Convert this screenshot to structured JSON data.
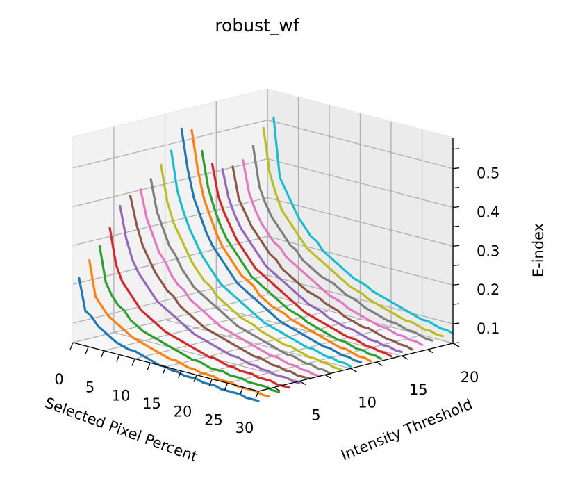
{
  "chart_data": {
    "type": "line",
    "subtype": "3d-waterfall",
    "title": "robust_wf",
    "xlabel": "Selected Pixel Percent",
    "ylabel": "Intensity Threshold",
    "zlabel": "E-index",
    "x_ticks": [
      "0",
      "5",
      "10",
      "15",
      "20",
      "25",
      "30"
    ],
    "y_ticks": [
      "5",
      "10",
      "15",
      "20"
    ],
    "z_ticks": [
      "0.1",
      "0.2",
      "0.3",
      "0.4",
      "0.5"
    ],
    "xlim": [
      0,
      30
    ],
    "ylim": [
      1,
      20
    ],
    "zlim": [
      0.05,
      0.58
    ],
    "grid": true,
    "colors": [
      "#1f77b4",
      "#ff7f0e",
      "#2ca02c",
      "#d62728",
      "#9467bd",
      "#8c564b",
      "#e377c2",
      "#7f7f7f",
      "#bcbd22",
      "#17becf"
    ],
    "x": [
      1,
      2,
      3,
      4,
      5,
      6,
      7,
      8,
      9,
      10,
      11,
      12,
      13,
      14,
      15,
      16,
      17,
      18,
      19,
      20,
      21,
      22,
      23,
      24,
      25,
      26,
      27,
      28,
      29,
      30
    ],
    "series": [
      {
        "y": 1,
        "values": [
          0.22,
          0.14,
          0.13,
          0.11,
          0.1,
          0.09,
          0.08,
          0.075,
          0.07,
          0.07,
          0.065,
          0.06,
          0.055,
          0.05,
          0.05,
          0.045,
          0.045,
          0.04,
          0.04,
          0.04,
          0.035,
          0.035,
          0.035,
          0.03,
          0.03,
          0.03,
          0.03,
          0.025,
          0.025,
          0.025
        ]
      },
      {
        "y": 2,
        "values": [
          0.26,
          0.17,
          0.15,
          0.13,
          0.12,
          0.11,
          0.1,
          0.09,
          0.085,
          0.08,
          0.075,
          0.07,
          0.065,
          0.06,
          0.06,
          0.055,
          0.05,
          0.05,
          0.045,
          0.045,
          0.045,
          0.04,
          0.04,
          0.04,
          0.035,
          0.035,
          0.035,
          0.035,
          0.03,
          0.03
        ]
      },
      {
        "y": 3,
        "values": [
          0.29,
          0.2,
          0.17,
          0.15,
          0.14,
          0.12,
          0.11,
          0.1,
          0.095,
          0.09,
          0.085,
          0.08,
          0.075,
          0.07,
          0.065,
          0.06,
          0.06,
          0.055,
          0.05,
          0.05,
          0.05,
          0.045,
          0.045,
          0.045,
          0.04,
          0.04,
          0.04,
          0.04,
          0.035,
          0.035
        ]
      },
      {
        "y": 4,
        "values": [
          0.33,
          0.24,
          0.2,
          0.18,
          0.16,
          0.14,
          0.13,
          0.12,
          0.11,
          0.1,
          0.095,
          0.09,
          0.085,
          0.08,
          0.075,
          0.07,
          0.065,
          0.065,
          0.06,
          0.055,
          0.055,
          0.05,
          0.05,
          0.05,
          0.045,
          0.045,
          0.045,
          0.04,
          0.04,
          0.04
        ]
      },
      {
        "y": 5,
        "values": [
          0.38,
          0.3,
          0.25,
          0.22,
          0.2,
          0.18,
          0.16,
          0.15,
          0.14,
          0.13,
          0.12,
          0.11,
          0.1,
          0.095,
          0.09,
          0.085,
          0.08,
          0.075,
          0.07,
          0.07,
          0.065,
          0.06,
          0.06,
          0.055,
          0.055,
          0.05,
          0.05,
          0.05,
          0.045,
          0.045
        ]
      },
      {
        "y": 6,
        "values": [
          0.4,
          0.33,
          0.28,
          0.25,
          0.22,
          0.2,
          0.18,
          0.17,
          0.15,
          0.14,
          0.13,
          0.12,
          0.11,
          0.105,
          0.1,
          0.095,
          0.09,
          0.085,
          0.08,
          0.075,
          0.07,
          0.07,
          0.065,
          0.06,
          0.06,
          0.055,
          0.055,
          0.05,
          0.05,
          0.05
        ]
      },
      {
        "y": 7,
        "values": [
          0.41,
          0.34,
          0.3,
          0.26,
          0.24,
          0.21,
          0.19,
          0.18,
          0.16,
          0.15,
          0.14,
          0.13,
          0.12,
          0.11,
          0.105,
          0.1,
          0.095,
          0.09,
          0.085,
          0.08,
          0.075,
          0.07,
          0.07,
          0.065,
          0.06,
          0.06,
          0.055,
          0.055,
          0.05,
          0.05
        ]
      },
      {
        "y": 8,
        "values": [
          0.43,
          0.35,
          0.31,
          0.27,
          0.25,
          0.22,
          0.2,
          0.18,
          0.17,
          0.16,
          0.15,
          0.14,
          0.13,
          0.12,
          0.11,
          0.105,
          0.1,
          0.095,
          0.09,
          0.085,
          0.08,
          0.075,
          0.07,
          0.07,
          0.065,
          0.06,
          0.06,
          0.055,
          0.055,
          0.05
        ]
      },
      {
        "y": 9,
        "values": [
          0.46,
          0.37,
          0.32,
          0.29,
          0.26,
          0.23,
          0.21,
          0.19,
          0.18,
          0.16,
          0.15,
          0.14,
          0.13,
          0.12,
          0.115,
          0.11,
          0.1,
          0.095,
          0.09,
          0.085,
          0.08,
          0.08,
          0.075,
          0.07,
          0.065,
          0.065,
          0.06,
          0.06,
          0.055,
          0.055
        ]
      },
      {
        "y": 10,
        "values": [
          0.49,
          0.39,
          0.34,
          0.3,
          0.27,
          0.24,
          0.22,
          0.2,
          0.18,
          0.17,
          0.16,
          0.15,
          0.14,
          0.13,
          0.12,
          0.11,
          0.105,
          0.1,
          0.095,
          0.09,
          0.085,
          0.08,
          0.075,
          0.075,
          0.07,
          0.065,
          0.065,
          0.06,
          0.06,
          0.055
        ]
      },
      {
        "y": 11,
        "values": [
          0.54,
          0.44,
          0.37,
          0.33,
          0.29,
          0.26,
          0.24,
          0.22,
          0.2,
          0.18,
          0.17,
          0.16,
          0.15,
          0.14,
          0.13,
          0.12,
          0.11,
          0.105,
          0.1,
          0.095,
          0.09,
          0.085,
          0.08,
          0.075,
          0.075,
          0.07,
          0.065,
          0.065,
          0.06,
          0.06
        ]
      },
      {
        "y": 12,
        "values": [
          0.53,
          0.43,
          0.36,
          0.32,
          0.28,
          0.25,
          0.23,
          0.21,
          0.19,
          0.18,
          0.17,
          0.15,
          0.14,
          0.13,
          0.125,
          0.12,
          0.11,
          0.105,
          0.1,
          0.095,
          0.09,
          0.085,
          0.08,
          0.075,
          0.07,
          0.07,
          0.065,
          0.06,
          0.06,
          0.055
        ]
      },
      {
        "y": 13,
        "values": [
          0.47,
          0.38,
          0.33,
          0.29,
          0.26,
          0.24,
          0.22,
          0.2,
          0.18,
          0.17,
          0.16,
          0.15,
          0.14,
          0.13,
          0.12,
          0.115,
          0.11,
          0.1,
          0.095,
          0.09,
          0.085,
          0.08,
          0.075,
          0.075,
          0.07,
          0.065,
          0.065,
          0.06,
          0.06,
          0.055
        ]
      },
      {
        "y": 14,
        "values": [
          0.43,
          0.35,
          0.31,
          0.28,
          0.25,
          0.23,
          0.21,
          0.19,
          0.18,
          0.17,
          0.16,
          0.15,
          0.14,
          0.13,
          0.12,
          0.11,
          0.105,
          0.1,
          0.095,
          0.09,
          0.085,
          0.08,
          0.075,
          0.075,
          0.07,
          0.065,
          0.065,
          0.06,
          0.06,
          0.055
        ]
      },
      {
        "y": 15,
        "values": [
          0.41,
          0.34,
          0.3,
          0.27,
          0.25,
          0.23,
          0.21,
          0.19,
          0.18,
          0.17,
          0.16,
          0.15,
          0.14,
          0.13,
          0.12,
          0.115,
          0.11,
          0.1,
          0.095,
          0.09,
          0.085,
          0.085,
          0.08,
          0.075,
          0.07,
          0.07,
          0.065,
          0.065,
          0.06,
          0.06
        ]
      },
      {
        "y": 16,
        "values": [
          0.41,
          0.33,
          0.3,
          0.27,
          0.25,
          0.23,
          0.21,
          0.2,
          0.18,
          0.17,
          0.16,
          0.15,
          0.14,
          0.135,
          0.13,
          0.12,
          0.115,
          0.11,
          0.1,
          0.095,
          0.09,
          0.085,
          0.085,
          0.08,
          0.075,
          0.07,
          0.07,
          0.065,
          0.065,
          0.06
        ]
      },
      {
        "y": 17,
        "values": [
          0.42,
          0.34,
          0.3,
          0.27,
          0.25,
          0.23,
          0.22,
          0.2,
          0.19,
          0.18,
          0.17,
          0.16,
          0.15,
          0.14,
          0.13,
          0.125,
          0.12,
          0.11,
          0.105,
          0.1,
          0.095,
          0.09,
          0.085,
          0.085,
          0.08,
          0.075,
          0.075,
          0.07,
          0.07,
          0.065
        ]
      },
      {
        "y": 18,
        "values": [
          0.45,
          0.35,
          0.31,
          0.28,
          0.26,
          0.24,
          0.22,
          0.21,
          0.19,
          0.18,
          0.17,
          0.16,
          0.155,
          0.15,
          0.14,
          0.13,
          0.125,
          0.12,
          0.11,
          0.105,
          0.1,
          0.095,
          0.09,
          0.09,
          0.085,
          0.08,
          0.08,
          0.075,
          0.07,
          0.07
        ]
      },
      {
        "y": 19,
        "values": [
          0.49,
          0.38,
          0.33,
          0.29,
          0.27,
          0.25,
          0.23,
          0.21,
          0.2,
          0.19,
          0.18,
          0.17,
          0.16,
          0.15,
          0.14,
          0.135,
          0.13,
          0.12,
          0.115,
          0.11,
          0.105,
          0.1,
          0.095,
          0.09,
          0.09,
          0.085,
          0.08,
          0.08,
          0.075,
          0.075
        ]
      },
      {
        "y": 20,
        "values": [
          0.51,
          0.36,
          0.33,
          0.3,
          0.27,
          0.25,
          0.23,
          0.22,
          0.2,
          0.19,
          0.18,
          0.17,
          0.16,
          0.15,
          0.145,
          0.14,
          0.13,
          0.125,
          0.12,
          0.115,
          0.11,
          0.105,
          0.1,
          0.095,
          0.09,
          0.09,
          0.085,
          0.08,
          0.08,
          0.075
        ]
      }
    ]
  }
}
